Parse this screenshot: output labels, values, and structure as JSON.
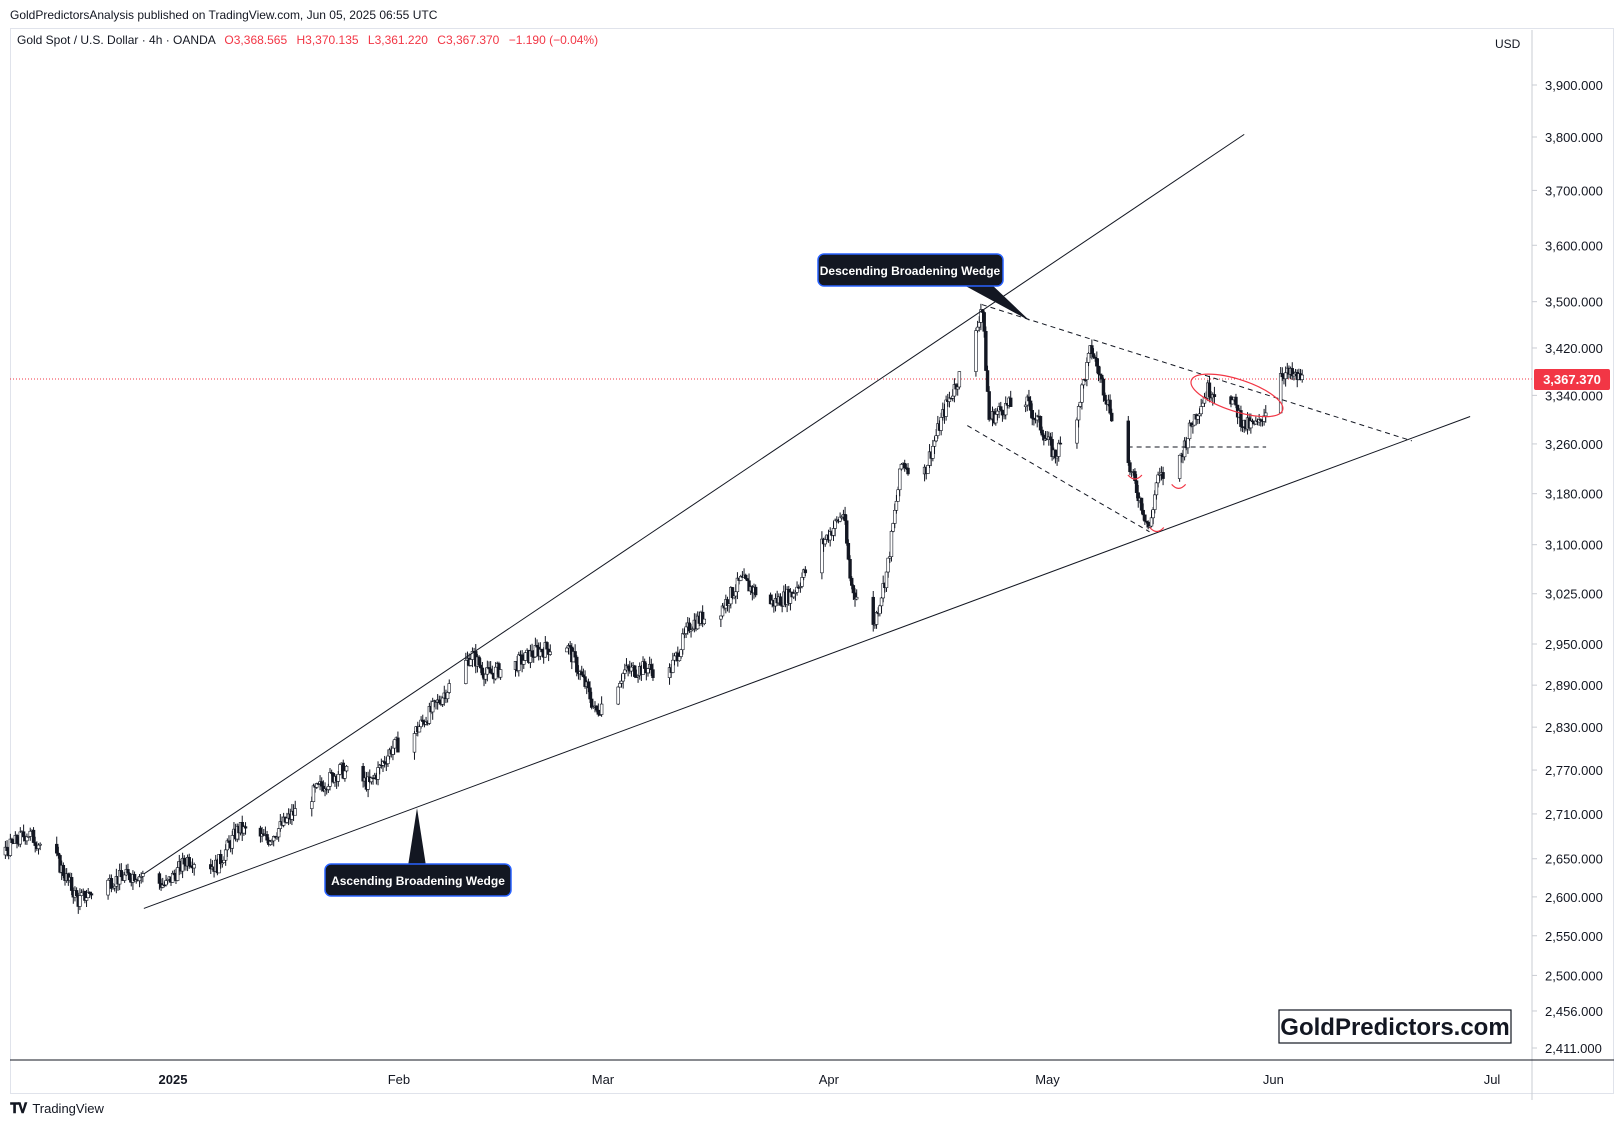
{
  "header": {
    "publisher": "GoldPredictorsAnalysis published on TradingView.com, Jun 05, 2025 06:55 UTC"
  },
  "legend": {
    "symbol": "Gold Spot / U.S. Dollar · 4h · OANDA",
    "open": "O3,368.565",
    "high": "H3,370.135",
    "low": "L3,361.220",
    "close": "C3,367.370",
    "change": "−1.190 (−0.04%)"
  },
  "price_axis": {
    "currency": "USD",
    "current_price_label": "3,367.370"
  },
  "annotations": {
    "descending": "Descending Broadening Wedge",
    "ascending": "Ascending Broadening Wedge"
  },
  "watermark": "GoldPredictors.com",
  "footer": {
    "logo": "TradingView"
  },
  "colors": {
    "up": "#089981",
    "down": "#f23645",
    "price_line": "#f23645",
    "trendline": "#131722",
    "annotation_bg": "#131722"
  },
  "chart_data": {
    "type": "candlestick",
    "title": "Gold Spot / U.S. Dollar · 4h · OANDA",
    "y_tick_labels": [
      "3,900.000",
      "3,800.000",
      "3,700.000",
      "3,600.000",
      "3,500.000",
      "3,420.000",
      "3,340.000",
      "3,260.000",
      "3,180.000",
      "3,100.000",
      "3,025.000",
      "2,950.000",
      "2,890.000",
      "2,830.000",
      "2,770.000",
      "2,710.000",
      "2,650.000",
      "2,600.000",
      "2,550.000",
      "2,500.000",
      "2,456.000",
      "2,411.000"
    ],
    "y_ticks": [
      3900,
      3800,
      3700,
      3600,
      3500,
      3420,
      3340,
      3260,
      3180,
      3100,
      3025,
      2950,
      2890,
      2830,
      2770,
      2710,
      2650,
      2600,
      2550,
      2500,
      2456,
      2411
    ],
    "x_tick_labels": [
      "2025",
      "Feb",
      "Mar",
      "Apr",
      "May",
      "Jun",
      "Jul"
    ],
    "x_ticks": [
      "2025-01-01",
      "2025-02-01",
      "2025-03-01",
      "2025-04-01",
      "2025-05-01",
      "2025-06-01",
      "2025-07-01"
    ],
    "current_price": 3367.37,
    "scale": "log",
    "close_path": [
      [
        "2024-11-19",
        2640
      ],
      [
        "2024-11-22",
        2715
      ],
      [
        "2024-11-26",
        2630
      ],
      [
        "2024-11-29",
        2650
      ],
      [
        "2024-12-04",
        2645
      ],
      [
        "2024-12-09",
        2660
      ],
      [
        "2024-12-12",
        2685
      ],
      [
        "2024-12-16",
        2650
      ],
      [
        "2024-12-19",
        2595
      ],
      [
        "2024-12-23",
        2620
      ],
      [
        "2024-12-27",
        2630
      ],
      [
        "2024-12-31",
        2615
      ],
      [
        "2025-01-03",
        2650
      ],
      [
        "2025-01-07",
        2640
      ],
      [
        "2025-01-10",
        2690
      ],
      [
        "2025-01-14",
        2675
      ],
      [
        "2025-01-17",
        2705
      ],
      [
        "2025-01-21",
        2745
      ],
      [
        "2025-01-24",
        2770
      ],
      [
        "2025-01-28",
        2750
      ],
      [
        "2025-01-31",
        2800
      ],
      [
        "2025-02-03",
        2820
      ],
      [
        "2025-02-06",
        2860
      ],
      [
        "2025-02-11",
        2935
      ],
      [
        "2025-02-13",
        2905
      ],
      [
        "2025-02-17",
        2920
      ],
      [
        "2025-02-20",
        2940
      ],
      [
        "2025-02-24",
        2950
      ],
      [
        "2025-02-27",
        2880
      ],
      [
        "2025-02-28",
        2850
      ],
      [
        "2025-03-04",
        2910
      ],
      [
        "2025-03-07",
        2915
      ],
      [
        "2025-03-10",
        2905
      ],
      [
        "2025-03-13",
        2980
      ],
      [
        "2025-03-17",
        3000
      ],
      [
        "2025-03-20",
        3045
      ],
      [
        "2025-03-24",
        3010
      ],
      [
        "2025-03-27",
        3025
      ],
      [
        "2025-03-31",
        3100
      ],
      [
        "2025-04-03",
        3150
      ],
      [
        "2025-04-04",
        3040
      ],
      [
        "2025-04-07",
        2970
      ],
      [
        "2025-04-09",
        3060
      ],
      [
        "2025-04-11",
        3230
      ],
      [
        "2025-04-14",
        3210
      ],
      [
        "2025-04-17",
        3320
      ],
      [
        "2025-04-21",
        3430
      ],
      [
        "2025-04-22",
        3500
      ],
      [
        "2025-04-23",
        3300
      ],
      [
        "2025-04-25",
        3320
      ],
      [
        "2025-04-28",
        3330
      ],
      [
        "2025-04-30",
        3290
      ],
      [
        "2025-05-02",
        3240
      ],
      [
        "2025-05-05",
        3310
      ],
      [
        "2025-05-07",
        3420
      ],
      [
        "2025-05-09",
        3340
      ],
      [
        "2025-05-12",
        3230
      ],
      [
        "2025-05-14",
        3160
      ],
      [
        "2025-05-15",
        3120
      ],
      [
        "2025-05-16",
        3200
      ],
      [
        "2025-05-19",
        3230
      ],
      [
        "2025-05-21",
        3300
      ],
      [
        "2025-05-23",
        3350
      ],
      [
        "2025-05-26",
        3340
      ],
      [
        "2025-05-28",
        3290
      ],
      [
        "2025-05-30",
        3290
      ],
      [
        "2025-06-02",
        3380
      ],
      [
        "2025-06-04",
        3370
      ],
      [
        "2025-06-05",
        3367.37
      ]
    ]
  }
}
